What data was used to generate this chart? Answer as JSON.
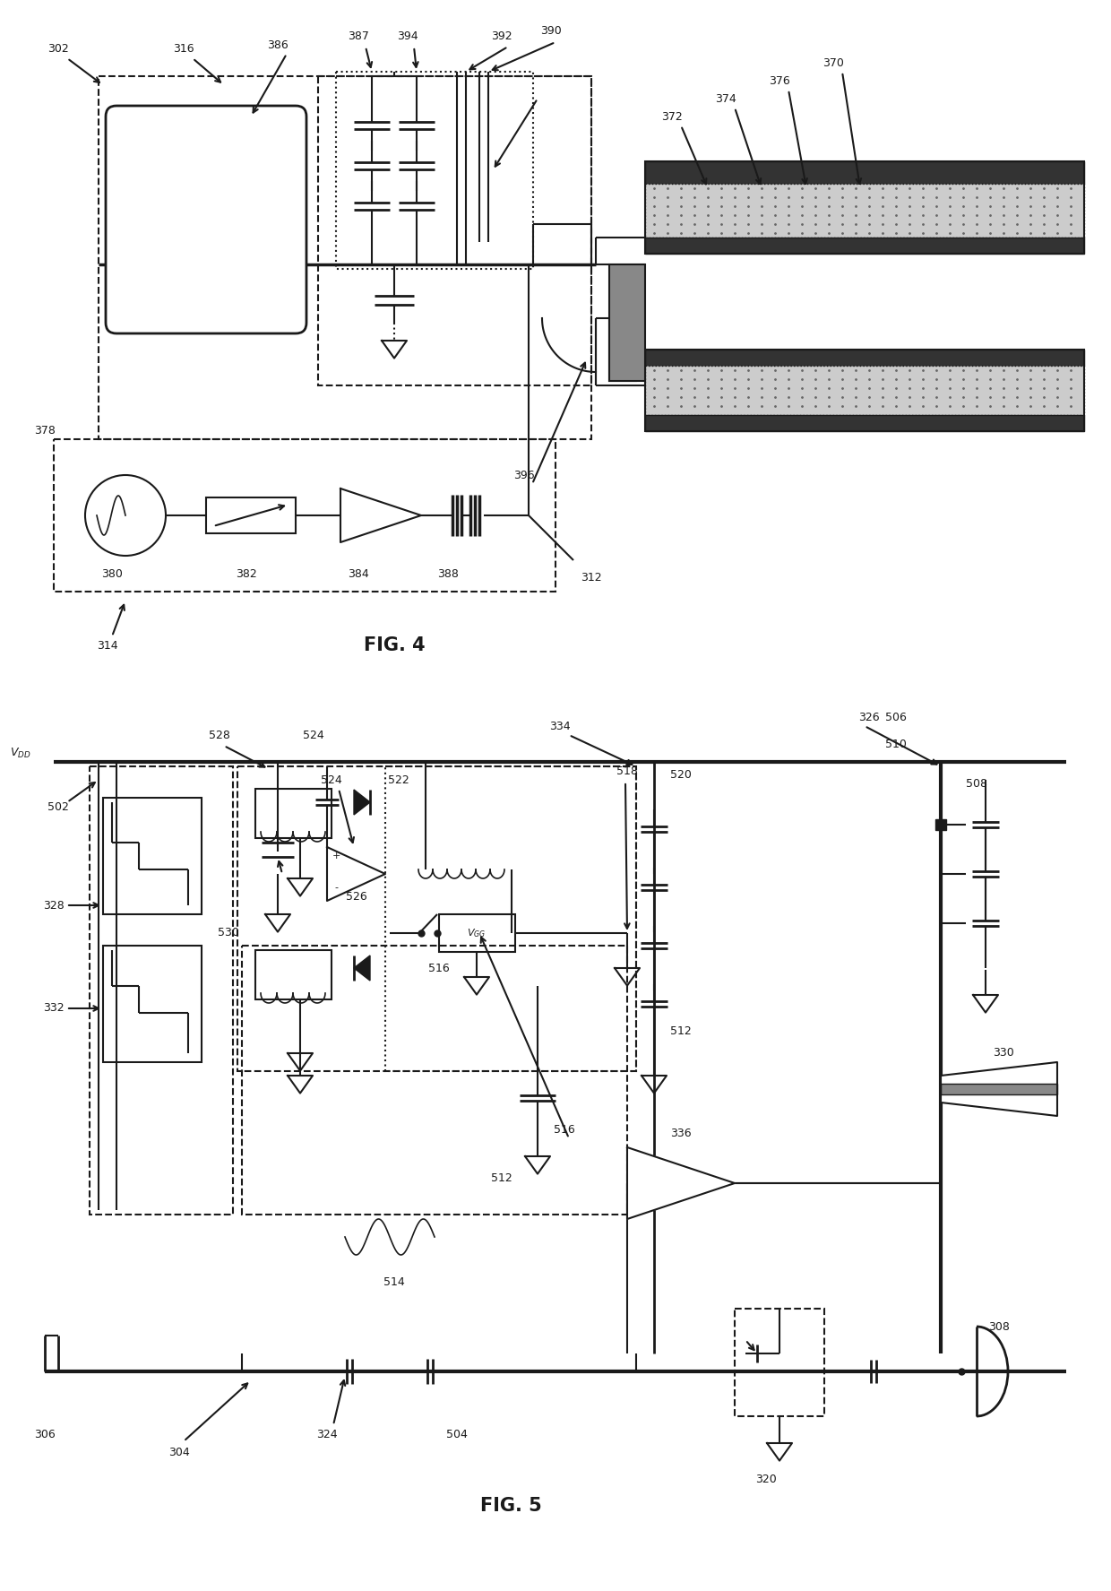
{
  "fig_width": 12.4,
  "fig_height": 17.75,
  "dpi": 100,
  "bg_color": "#ffffff",
  "line_color": "#1a1a1a",
  "lw": 1.5
}
